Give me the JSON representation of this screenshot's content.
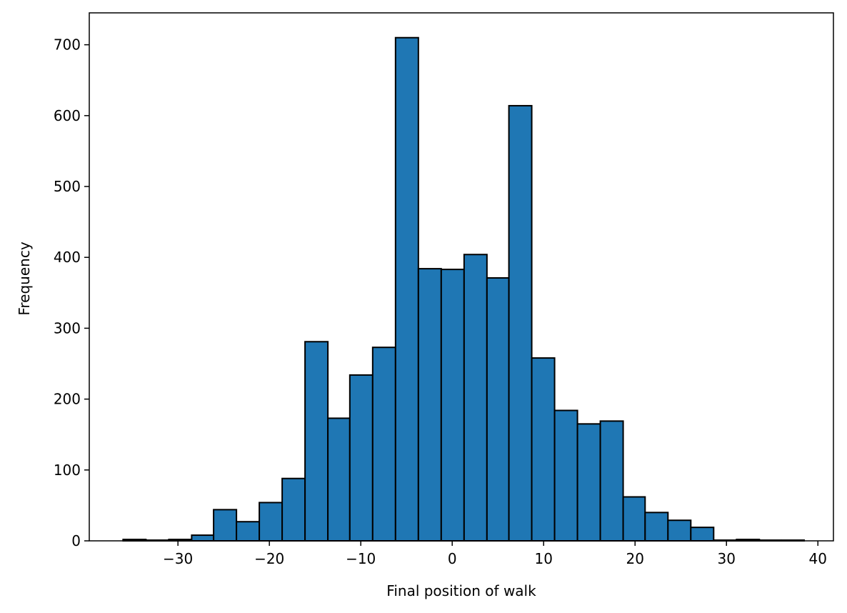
{
  "chart_data": {
    "type": "bar",
    "title": "",
    "xlabel": "Final position of walk",
    "ylabel": "Frequency",
    "xlim": [
      -39.7,
      41.7
    ],
    "ylim": [
      0,
      745
    ],
    "xticks": [
      -30,
      -20,
      -10,
      0,
      10,
      20,
      30,
      40
    ],
    "yticks": [
      0,
      100,
      200,
      300,
      400,
      500,
      600,
      700
    ],
    "xtick_labels": [
      "−30",
      "−20",
      "−10",
      "0",
      "10",
      "20",
      "30",
      "40"
    ],
    "ytick_labels": [
      "0",
      "100",
      "200",
      "300",
      "400",
      "500",
      "600",
      "700"
    ],
    "grid": false,
    "bin_edges": [
      -36.0,
      -33.5,
      -31.0,
      -28.5,
      -26.1,
      -23.6,
      -21.1,
      -18.6,
      -16.1,
      -13.6,
      -11.2,
      -8.7,
      -6.2,
      -3.7,
      -1.2,
      1.3,
      3.8,
      6.2,
      8.7,
      11.2,
      13.7,
      16.2,
      18.7,
      21.1,
      23.6,
      26.1,
      28.6,
      31.1,
      33.6,
      36.0,
      38.5
    ],
    "values": [
      2,
      1,
      2,
      8,
      44,
      27,
      54,
      88,
      281,
      173,
      234,
      273,
      710,
      384,
      383,
      404,
      371,
      614,
      258,
      184,
      165,
      169,
      62,
      40,
      29,
      19,
      1,
      2,
      1,
      1
    ],
    "bar_color": "#1f77b4",
    "edge_color": "#000000"
  }
}
